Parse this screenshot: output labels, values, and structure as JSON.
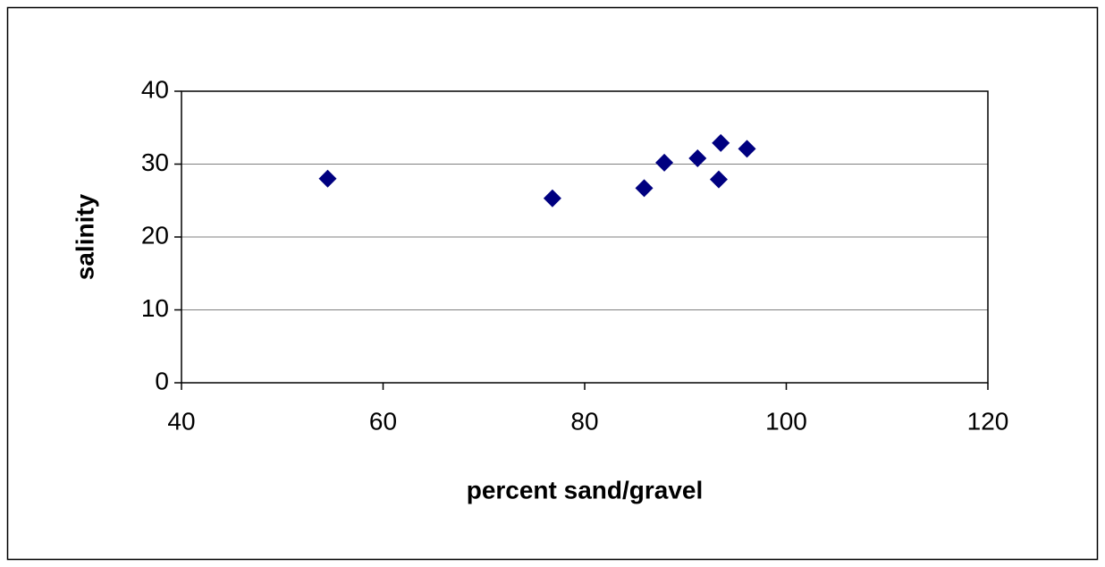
{
  "chart_data": {
    "type": "scatter",
    "x_label": "percent sand/gravel",
    "y_label": "salinity",
    "series": [
      {
        "color": "#000080",
        "x": [
          54.5,
          76.8,
          85.9,
          87.9,
          91.2,
          93.5,
          93.3,
          96.1
        ],
        "values": [
          28,
          25.3,
          26.7,
          30.2,
          30.8,
          32.9,
          27.9,
          32.1
        ]
      }
    ],
    "xlim": [
      40,
      120
    ],
    "xticks": [
      40,
      60,
      80,
      100,
      120
    ],
    "ylim": [
      0,
      40
    ],
    "yticks": [
      0,
      10,
      20,
      30,
      40
    ],
    "grid": true
  }
}
